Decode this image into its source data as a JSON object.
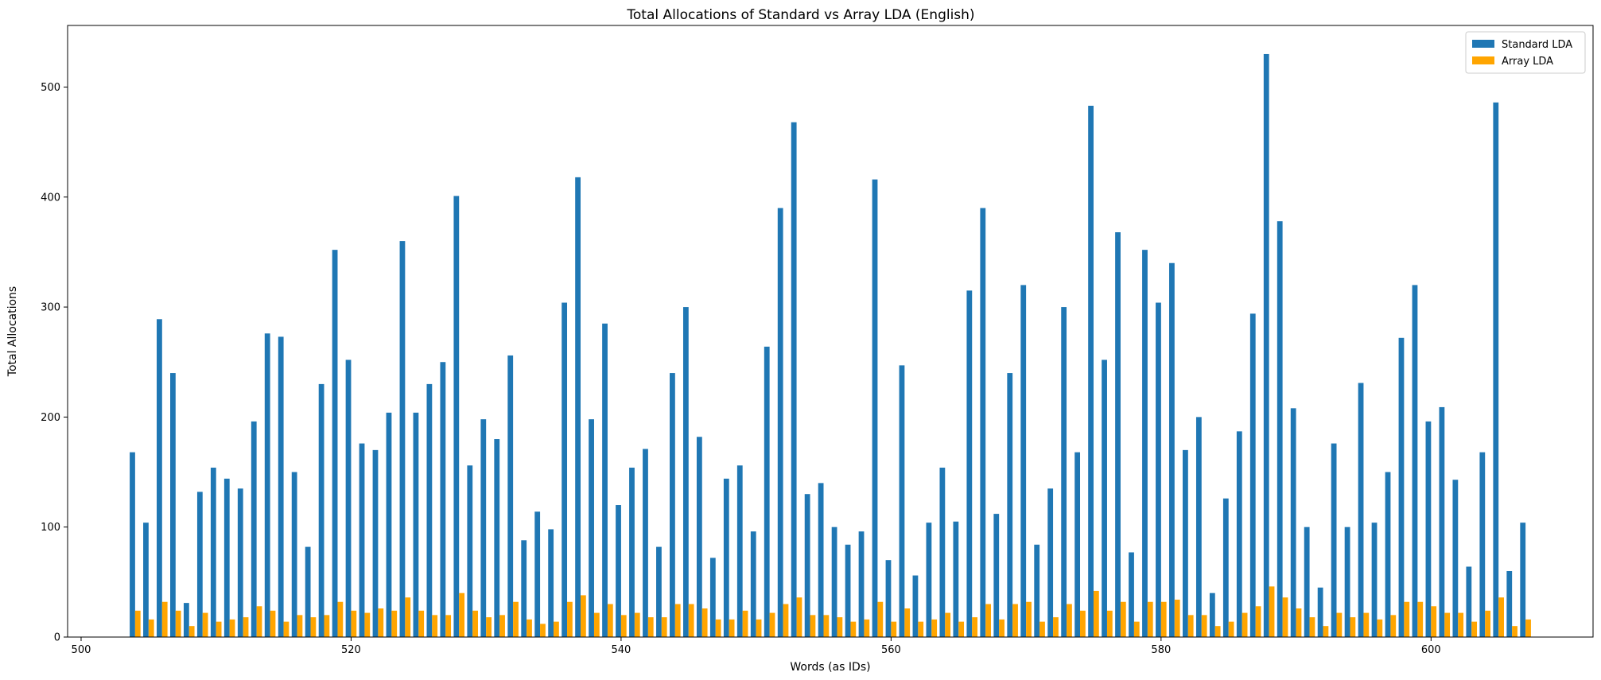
{
  "chart_data": {
    "type": "bar",
    "title": "Total Allocations of Standard vs Array LDA (English)",
    "xlabel": "Words (as IDs)",
    "ylabel": "Total Allocations",
    "xlim": [
      499,
      612
    ],
    "ylim": [
      0,
      556
    ],
    "xticks": [
      500,
      520,
      540,
      560,
      580,
      600
    ],
    "yticks": [
      0,
      100,
      200,
      300,
      400,
      500
    ],
    "grid": false,
    "legend_position": "top-right",
    "x": [
      504,
      505,
      506,
      507,
      508,
      509,
      510,
      511,
      512,
      513,
      514,
      515,
      516,
      517,
      518,
      519,
      520,
      521,
      522,
      523,
      524,
      525,
      526,
      527,
      528,
      529,
      530,
      531,
      532,
      533,
      534,
      535,
      536,
      537,
      538,
      539,
      540,
      541,
      542,
      543,
      544,
      545,
      546,
      547,
      548,
      549,
      550,
      551,
      552,
      553,
      554,
      555,
      556,
      557,
      558,
      559,
      560,
      561,
      562,
      563,
      564,
      565,
      566,
      567,
      568,
      569,
      570,
      571,
      572,
      573,
      574,
      575,
      576,
      577,
      578,
      579,
      580,
      581,
      582,
      583,
      584,
      585,
      586,
      587,
      588,
      589,
      590,
      591,
      592,
      593,
      594,
      595,
      596,
      597,
      598,
      599,
      600,
      601,
      602,
      603,
      604,
      605,
      606,
      607
    ],
    "series": [
      {
        "name": "Standard LDA",
        "color": "#1f77b4",
        "values": [
          168,
          104,
          289,
          240,
          31,
          132,
          154,
          144,
          135,
          196,
          276,
          273,
          150,
          82,
          230,
          352,
          252,
          176,
          170,
          204,
          360,
          204,
          230,
          250,
          401,
          156,
          198,
          180,
          256,
          88,
          114,
          98,
          304,
          418,
          198,
          285,
          120,
          154,
          171,
          82,
          240,
          300,
          182,
          72,
          144,
          156,
          96,
          264,
          390,
          468,
          130,
          140,
          100,
          84,
          96,
          416,
          70,
          247,
          56,
          104,
          154,
          105,
          315,
          390,
          112,
          240,
          320,
          84,
          135,
          300,
          168,
          483,
          252,
          368,
          77,
          352,
          304,
          340,
          170,
          200,
          40,
          126,
          187,
          294,
          530,
          378,
          208,
          100,
          45,
          176,
          100,
          231,
          104,
          150,
          272,
          320,
          196,
          209,
          143,
          64,
          168,
          486,
          60,
          104
        ]
      },
      {
        "name": "Array LDA",
        "color": "#ffa500",
        "values": [
          24,
          16,
          32,
          24,
          10,
          22,
          14,
          16,
          18,
          28,
          24,
          14,
          20,
          18,
          20,
          32,
          24,
          22,
          26,
          24,
          36,
          24,
          20,
          20,
          40,
          24,
          18,
          20,
          32,
          16,
          12,
          14,
          32,
          38,
          22,
          30,
          20,
          22,
          18,
          18,
          30,
          30,
          26,
          16,
          16,
          24,
          16,
          22,
          30,
          36,
          20,
          20,
          18,
          14,
          16,
          32,
          14,
          26,
          14,
          16,
          22,
          14,
          18,
          30,
          16,
          30,
          32,
          14,
          18,
          30,
          24,
          42,
          24,
          32,
          14,
          32,
          32,
          34,
          20,
          20,
          10,
          14,
          22,
          28,
          46,
          36,
          26,
          18,
          10,
          22,
          18,
          22,
          16,
          20,
          32,
          32,
          28,
          22,
          22,
          14,
          24,
          36,
          10,
          16
        ]
      }
    ]
  }
}
